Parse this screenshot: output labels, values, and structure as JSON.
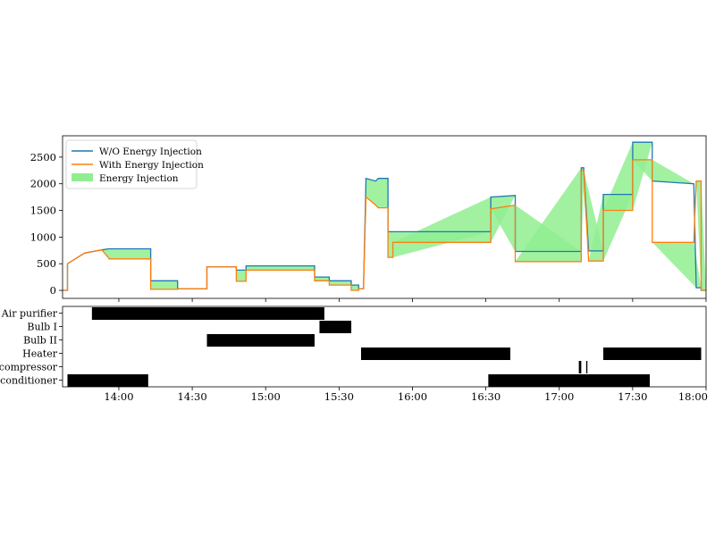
{
  "chart_data": [
    {
      "type": "line",
      "title": "",
      "xlabel": "",
      "ylabel": "",
      "xlim": [
        "13:37",
        "18:00"
      ],
      "ylim": [
        -150,
        2900
      ],
      "yticks": [
        0,
        500,
        1000,
        1500,
        2000,
        2500
      ],
      "legend": {
        "placement": "top-left",
        "entries": [
          "W/O Energy Injection",
          "With Energy Injection",
          "Energy Injection"
        ]
      },
      "colors": {
        "without": "#1f77b4",
        "with": "#ff7f0e",
        "injection": "#90ee90"
      },
      "series": [
        {
          "name": "W/O Energy Injection",
          "segments": [
            {
              "x": [
                "13:37",
                "13:39"
              ],
              "y": [
                0,
                0
              ]
            },
            {
              "x": [
                "13:39",
                "13:46",
                "13:53",
                "13:56"
              ],
              "y": [
                500,
                700,
                760,
                780
              ]
            },
            {
              "x": [
                "13:56",
                "14:13"
              ],
              "y": [
                780,
                780
              ]
            },
            {
              "x": [
                "14:13",
                "14:24"
              ],
              "y": [
                180,
                180
              ]
            },
            {
              "x": [
                "14:24",
                "14:36"
              ],
              "y": [
                30,
                30
              ]
            },
            {
              "x": [
                "14:36",
                "14:48"
              ],
              "y": [
                440,
                440
              ]
            },
            {
              "x": [
                "14:48",
                "14:52"
              ],
              "y": [
                380,
                380
              ]
            },
            {
              "x": [
                "14:52",
                "15:20"
              ],
              "y": [
                460,
                460
              ]
            },
            {
              "x": [
                "15:20",
                "15:26"
              ],
              "y": [
                250,
                250
              ]
            },
            {
              "x": [
                "15:26",
                "15:35"
              ],
              "y": [
                180,
                180
              ]
            },
            {
              "x": [
                "15:35",
                "15:38"
              ],
              "y": [
                100,
                100
              ]
            },
            {
              "x": [
                "15:38",
                "15:40"
              ],
              "y": [
                30,
                30
              ]
            },
            {
              "x": [
                "15:41",
                "15:45",
                "15:46",
                "15:50"
              ],
              "y": [
                2100,
                2050,
                2100,
                2100
              ]
            },
            {
              "x": [
                "15:50",
                "16:32"
              ],
              "y": [
                1100,
                1100
              ]
            },
            {
              "x": [
                "16:32",
                "16:42"
              ],
              "y": [
                1750,
                1780
              ]
            },
            {
              "x": [
                "16:42",
                "17:09"
              ],
              "y": [
                730,
                730
              ]
            },
            {
              "x": [
                "17:09",
                "17:10"
              ],
              "y": [
                2300,
                2300
              ]
            },
            {
              "x": [
                "17:12",
                "17:18"
              ],
              "y": [
                740,
                740
              ]
            },
            {
              "x": [
                "17:18",
                "17:30"
              ],
              "y": [
                1800,
                1800
              ]
            },
            {
              "x": [
                "17:30",
                "17:38"
              ],
              "y": [
                2780,
                2780
              ]
            },
            {
              "x": [
                "17:38",
                "17:55"
              ],
              "y": [
                2050,
                2000
              ]
            },
            {
              "x": [
                "17:56",
                "17:58"
              ],
              "y": [
                50,
                50
              ]
            },
            {
              "x": [
                "17:58",
                "18:00"
              ],
              "y": [
                0,
                0
              ]
            }
          ]
        },
        {
          "name": "With Energy Injection",
          "segments": [
            {
              "x": [
                "13:37",
                "13:39"
              ],
              "y": [
                0,
                0
              ]
            },
            {
              "x": [
                "13:39",
                "13:46",
                "13:53",
                "13:56"
              ],
              "y": [
                500,
                700,
                760,
                600
              ]
            },
            {
              "x": [
                "13:56",
                "14:13"
              ],
              "y": [
                590,
                590
              ]
            },
            {
              "x": [
                "14:13",
                "14:24"
              ],
              "y": [
                20,
                20
              ]
            },
            {
              "x": [
                "14:24",
                "14:36"
              ],
              "y": [
                30,
                30
              ]
            },
            {
              "x": [
                "14:36",
                "14:48"
              ],
              "y": [
                440,
                440
              ]
            },
            {
              "x": [
                "14:48",
                "14:52"
              ],
              "y": [
                170,
                170
              ]
            },
            {
              "x": [
                "14:52",
                "15:20"
              ],
              "y": [
                380,
                380
              ]
            },
            {
              "x": [
                "15:20",
                "15:26"
              ],
              "y": [
                180,
                180
              ]
            },
            {
              "x": [
                "15:26",
                "15:35"
              ],
              "y": [
                100,
                100
              ]
            },
            {
              "x": [
                "15:35",
                "15:38"
              ],
              "y": [
                0,
                0
              ]
            },
            {
              "x": [
                "15:38",
                "15:40"
              ],
              "y": [
                30,
                30
              ]
            },
            {
              "x": [
                "15:41",
                "15:45",
                "15:46",
                "15:50"
              ],
              "y": [
                1750,
                1600,
                1550,
                1550
              ]
            },
            {
              "x": [
                "15:50",
                "15:52"
              ],
              "y": [
                620,
                620
              ]
            },
            {
              "x": [
                "15:52",
                "16:32"
              ],
              "y": [
                900,
                900
              ]
            },
            {
              "x": [
                "16:32",
                "16:42"
              ],
              "y": [
                1530,
                1600
              ]
            },
            {
              "x": [
                "16:42",
                "17:09"
              ],
              "y": [
                540,
                540
              ]
            },
            {
              "x": [
                "17:09",
                "17:10"
              ],
              "y": [
                2250,
                2250
              ]
            },
            {
              "x": [
                "17:12",
                "17:18"
              ],
              "y": [
                550,
                550
              ]
            },
            {
              "x": [
                "17:18",
                "17:30"
              ],
              "y": [
                1500,
                1500
              ]
            },
            {
              "x": [
                "17:30",
                "17:38"
              ],
              "y": [
                2450,
                2450
              ]
            },
            {
              "x": [
                "17:38",
                "17:55"
              ],
              "y": [
                900,
                900
              ]
            },
            {
              "x": [
                "17:56",
                "17:58"
              ],
              "y": [
                2050,
                2050
              ]
            },
            {
              "x": [
                "17:58",
                "18:00"
              ],
              "y": [
                0,
                0
              ]
            }
          ]
        }
      ]
    },
    {
      "type": "timeline",
      "title": "",
      "xlabel": "",
      "ylabel": "",
      "xlim": [
        "13:37",
        "18:00"
      ],
      "xticks": [
        "14:00",
        "14:30",
        "15:00",
        "15:30",
        "16:00",
        "16:30",
        "17:00",
        "17:30",
        "18:00"
      ],
      "categories": [
        "Air purifier",
        "Bulb I",
        "Bulb II",
        "Heater",
        "Air compressor",
        "Air conditioner"
      ],
      "bar_color": "#000000",
      "bars": [
        {
          "category": "Air purifier",
          "start": "13:49",
          "end": "15:24"
        },
        {
          "category": "Bulb I",
          "start": "15:22",
          "end": "15:35"
        },
        {
          "category": "Bulb II",
          "start": "14:36",
          "end": "15:20"
        },
        {
          "category": "Heater",
          "start": "15:39",
          "end": "16:40"
        },
        {
          "category": "Heater",
          "start": "17:18",
          "end": "17:58"
        },
        {
          "category": "Air compressor",
          "start": "17:08",
          "end": "17:09"
        },
        {
          "category": "Air compressor",
          "start": "17:11",
          "end": "17:11.5"
        },
        {
          "category": "Air conditioner",
          "start": "13:39",
          "end": "14:12"
        },
        {
          "category": "Air conditioner",
          "start": "16:31",
          "end": "17:37"
        }
      ]
    }
  ]
}
